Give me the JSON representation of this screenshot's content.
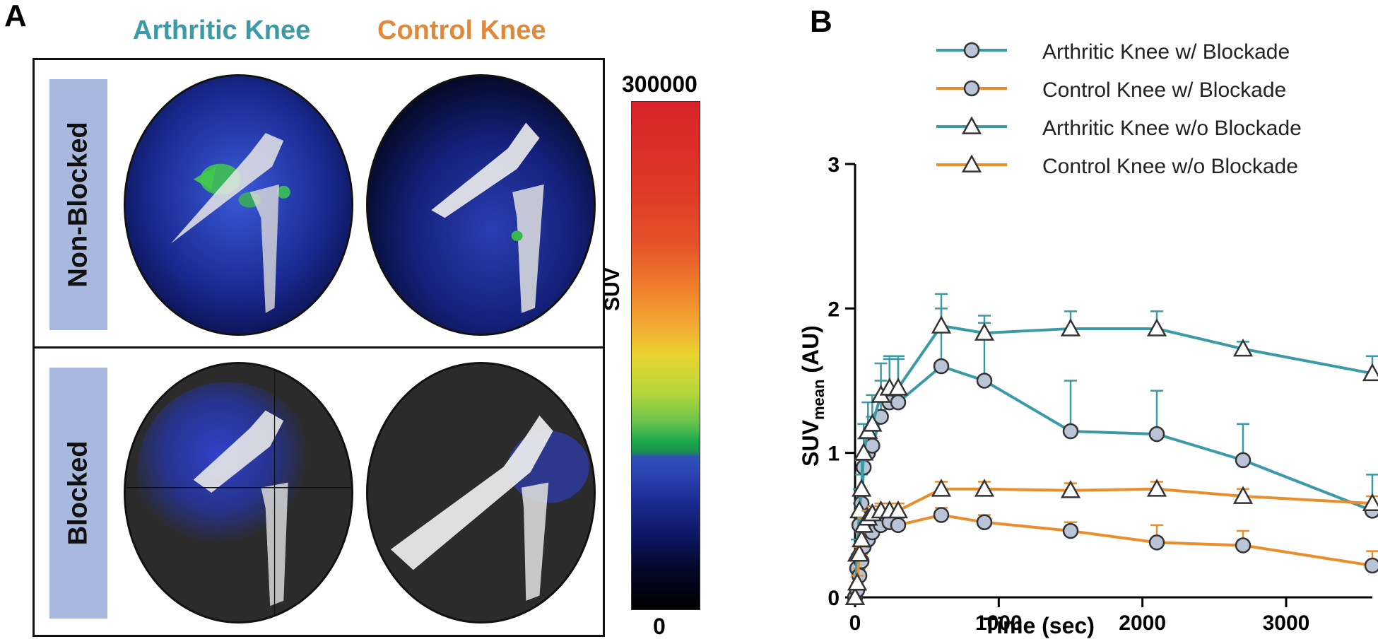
{
  "panels": {
    "a_label": "A",
    "b_label": "B"
  },
  "imaging": {
    "column_titles": [
      "Arthritic Knee",
      "Control Knee"
    ],
    "row_labels": [
      "Non-Blocked",
      "Blocked"
    ],
    "colorbar": {
      "max_label": "300000",
      "min_label": "0",
      "title": "SUV"
    },
    "colors": {
      "arthritic_title": "#3a9aa6",
      "control_title": "#e0893a",
      "row_label_bg": "#a8b8de"
    }
  },
  "chart_data": {
    "type": "line",
    "title": "",
    "xlabel": "Time (sec)",
    "ylabel_main": "SUV",
    "ylabel_sub": "mean",
    "ylabel_unit": "(AU)",
    "xlim": [
      0,
      3600
    ],
    "ylim": [
      0,
      3
    ],
    "xticks": [
      0,
      1000,
      2000,
      3000
    ],
    "yticks": [
      0,
      1,
      2,
      3
    ],
    "legend_position": "top-right",
    "grid": false,
    "series": [
      {
        "name": "Arthritic Knee w/ Blockade",
        "marker": "circle",
        "color": "#3a9aa6",
        "x": [
          0,
          15,
          30,
          45,
          60,
          90,
          120,
          180,
          240,
          300,
          600,
          900,
          1500,
          2100,
          2700,
          3600
        ],
        "y": [
          0.0,
          0.2,
          0.5,
          0.65,
          0.9,
          1.0,
          1.05,
          1.25,
          1.35,
          1.35,
          1.6,
          1.5,
          1.15,
          1.13,
          0.95,
          0.6
        ],
        "err": [
          0.0,
          0.1,
          0.15,
          0.2,
          0.2,
          0.2,
          0.2,
          0.25,
          0.3,
          0.3,
          0.4,
          0.4,
          0.35,
          0.3,
          0.25,
          0.25
        ]
      },
      {
        "name": "Control Knee w/ Blockade",
        "marker": "circle",
        "color": "#e98e2d",
        "x": [
          0,
          15,
          30,
          45,
          60,
          90,
          120,
          180,
          240,
          300,
          600,
          900,
          1500,
          2100,
          2700,
          3600
        ],
        "y": [
          0.0,
          0.05,
          0.15,
          0.25,
          0.35,
          0.4,
          0.45,
          0.5,
          0.52,
          0.5,
          0.57,
          0.52,
          0.46,
          0.38,
          0.36,
          0.22
        ],
        "err": [
          0.0,
          0.05,
          0.05,
          0.05,
          0.05,
          0.05,
          0.05,
          0.05,
          0.05,
          0.05,
          0.05,
          0.05,
          0.06,
          0.12,
          0.1,
          0.1
        ]
      },
      {
        "name": "Arthritic Knee w/o Blockade",
        "marker": "triangle",
        "color": "#3a9aa6",
        "x": [
          0,
          15,
          30,
          45,
          60,
          90,
          120,
          180,
          240,
          300,
          600,
          900,
          1500,
          2100,
          2700,
          3600
        ],
        "y": [
          0.0,
          0.3,
          0.6,
          0.75,
          1.0,
          1.15,
          1.2,
          1.4,
          1.45,
          1.45,
          1.88,
          1.83,
          1.86,
          1.86,
          1.72,
          1.55
        ],
        "err": [
          0.0,
          0.1,
          0.15,
          0.2,
          0.2,
          0.2,
          0.2,
          0.22,
          0.22,
          0.22,
          0.22,
          0.12,
          0.12,
          0.12,
          0.05,
          0.12
        ]
      },
      {
        "name": "Control Knee w/o Blockade",
        "marker": "triangle",
        "color": "#e98e2d",
        "x": [
          0,
          15,
          30,
          45,
          60,
          90,
          120,
          180,
          240,
          300,
          600,
          900,
          1500,
          2100,
          2700,
          3600
        ],
        "y": [
          0.0,
          0.1,
          0.3,
          0.4,
          0.5,
          0.55,
          0.58,
          0.6,
          0.6,
          0.6,
          0.75,
          0.75,
          0.74,
          0.75,
          0.7,
          0.65
        ],
        "err": [
          0.0,
          0.05,
          0.05,
          0.05,
          0.05,
          0.05,
          0.05,
          0.05,
          0.05,
          0.05,
          0.05,
          0.05,
          0.05,
          0.05,
          0.05,
          0.05
        ]
      }
    ]
  }
}
